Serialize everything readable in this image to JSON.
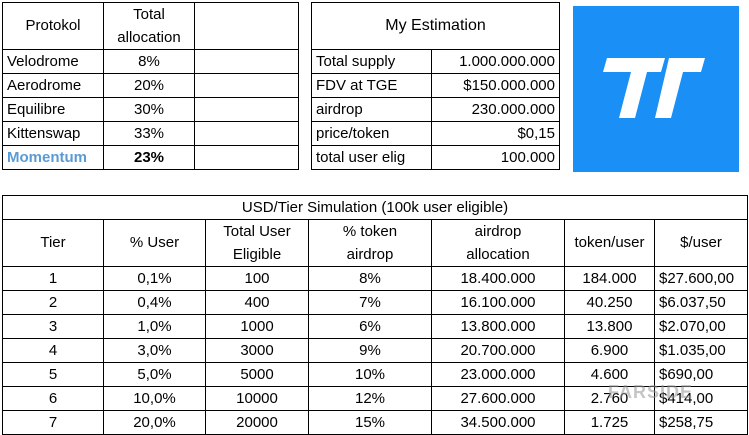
{
  "protokol_table": {
    "header_protokol": "Protokol",
    "header_allocation_line1": "Total",
    "header_allocation_line2": "allocation",
    "rows": [
      {
        "name": "Velodrome",
        "value": "8%"
      },
      {
        "name": "Aerodrome",
        "value": "20%"
      },
      {
        "name": "Equilibre",
        "value": "30%"
      },
      {
        "name": "Kittenswap",
        "value": "33%"
      },
      {
        "name": "Momentum",
        "value": "23%"
      }
    ]
  },
  "estimation_table": {
    "title": "My Estimation",
    "rows": [
      {
        "label": "Total supply",
        "value": "1.000.000.000"
      },
      {
        "label": "FDV at TGE",
        "value": "$150.000.000"
      },
      {
        "label": "airdrop",
        "value": "230.000.000"
      },
      {
        "label": "price/token",
        "value": "$0,15"
      },
      {
        "label": "total user elig",
        "value": "100.000"
      }
    ]
  },
  "logo": {
    "icon": "momentum-logo-icon",
    "background": "#1a8ff6"
  },
  "tier_table": {
    "title": "USD/Tier Simulation (100k user eligible)",
    "headers": {
      "tier": "Tier",
      "pct_user": "% User",
      "total_user_1": "Total User",
      "total_user_2": "Eligible",
      "pct_token_1": "% token",
      "pct_token_2": "airdrop",
      "airdrop_1": "airdrop",
      "airdrop_2": "allocation",
      "token_user": "token/user",
      "usd_user": "$/user"
    },
    "rows": [
      {
        "tier": "1",
        "pct_user": "0,1%",
        "eligible": "100",
        "pct_token": "8%",
        "allocation": "18.400.000",
        "token_user": "184.000",
        "usd_user": "$27.600,00"
      },
      {
        "tier": "2",
        "pct_user": "0,4%",
        "eligible": "400",
        "pct_token": "7%",
        "allocation": "16.100.000",
        "token_user": "40.250",
        "usd_user": "$6.037,50"
      },
      {
        "tier": "3",
        "pct_user": "1,0%",
        "eligible": "1000",
        "pct_token": "6%",
        "allocation": "13.800.000",
        "token_user": "13.800",
        "usd_user": "$2.070,00"
      },
      {
        "tier": "4",
        "pct_user": "3,0%",
        "eligible": "3000",
        "pct_token": "9%",
        "allocation": "20.700.000",
        "token_user": "6.900",
        "usd_user": "$1.035,00"
      },
      {
        "tier": "5",
        "pct_user": "5,0%",
        "eligible": "5000",
        "pct_token": "10%",
        "allocation": "23.000.000",
        "token_user": "4.600",
        "usd_user": "$690,00"
      },
      {
        "tier": "6",
        "pct_user": "10,0%",
        "eligible": "10000",
        "pct_token": "12%",
        "allocation": "27.600.000",
        "token_user": "2.760",
        "usd_user": "$414,00"
      },
      {
        "tier": "7",
        "pct_user": "20,0%",
        "eligible": "20000",
        "pct_token": "15%",
        "allocation": "34.500.000",
        "token_user": "1.725",
        "usd_user": "$258,75"
      }
    ]
  },
  "watermark": "FARSIDE"
}
